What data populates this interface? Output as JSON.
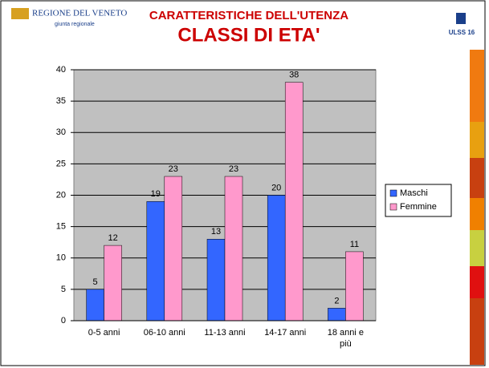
{
  "header": {
    "region": "REGIONE DEL VENETO",
    "region_sub": "giunta regionale",
    "ulss": "ULSS 16"
  },
  "chart_data": {
    "type": "bar",
    "title": "CARATTERISTICHE DELL'UTENZA",
    "subtitle": "CLASSI DI ETA'",
    "categories": [
      "0-5 anni",
      "06-10 anni",
      "11-13 anni",
      "14-17 anni",
      "18 anni e più"
    ],
    "series": [
      {
        "name": "Maschi",
        "color": "#3366ff",
        "values": [
          5,
          19,
          13,
          20,
          2
        ]
      },
      {
        "name": "Femmine",
        "color": "#ff99cc",
        "values": [
          12,
          23,
          23,
          38,
          11
        ]
      }
    ],
    "ylim": [
      0,
      40
    ],
    "yticks": [
      0,
      5,
      10,
      15,
      20,
      25,
      30,
      35,
      40
    ],
    "grid": true,
    "legend": "right"
  }
}
